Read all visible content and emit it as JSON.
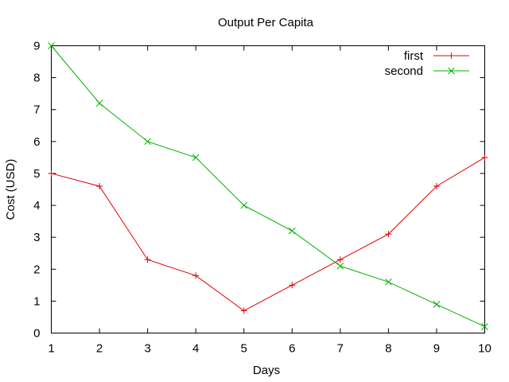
{
  "chart_data": {
    "type": "line",
    "title": "Output Per Capita",
    "xlabel": "Days",
    "ylabel": "Cost (USD)",
    "xlim": [
      1,
      10
    ],
    "ylim": [
      0,
      9
    ],
    "xticks": [
      1,
      2,
      3,
      4,
      5,
      6,
      7,
      8,
      9,
      10
    ],
    "yticks": [
      0,
      1,
      2,
      3,
      4,
      5,
      6,
      7,
      8,
      9
    ],
    "grid": false,
    "legend_position": "top-right",
    "x": [
      1,
      2,
      3,
      4,
      5,
      6,
      7,
      8,
      9,
      10
    ],
    "series": [
      {
        "name": "first",
        "color": "#e00000",
        "marker": "plus",
        "values": [
          5.0,
          4.6,
          2.3,
          1.8,
          0.7,
          1.5,
          2.3,
          3.1,
          4.6,
          5.5
        ]
      },
      {
        "name": "second",
        "color": "#00b000",
        "marker": "cross",
        "values": [
          9.0,
          7.2,
          6.0,
          5.5,
          4.0,
          3.2,
          2.1,
          1.6,
          0.9,
          0.2
        ]
      }
    ]
  }
}
